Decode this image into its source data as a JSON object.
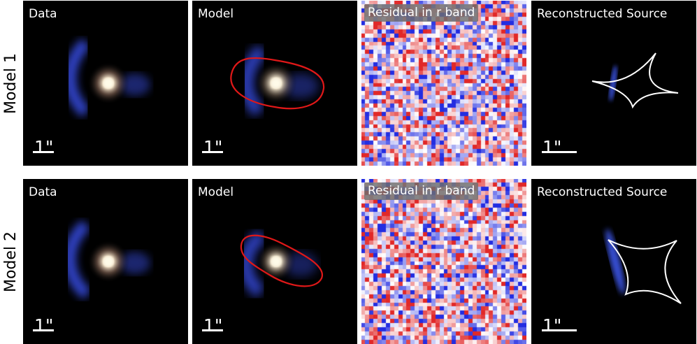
{
  "rows": [
    {
      "label": "Model 1",
      "panels": {
        "data": {
          "title": "Data",
          "scale": "1\""
        },
        "model": {
          "title": "Model",
          "scale": "1\""
        },
        "residual": {
          "title": "Residual in r band"
        },
        "source": {
          "title": "Reconstructed Source",
          "scale": "1\""
        }
      }
    },
    {
      "label": "Model 2",
      "panels": {
        "data": {
          "title": "Data",
          "scale": "1\""
        },
        "model": {
          "title": "Model",
          "scale": "1\""
        },
        "residual": {
          "title": "Residual in r band"
        },
        "source": {
          "title": "Reconstructed Source",
          "scale": "1\""
        }
      }
    }
  ],
  "colors": {
    "background": "#000000",
    "arc": "#3a52e0",
    "lens_galaxy": "#f4ead8",
    "critical_curve": "#e01818",
    "caustic": "#ffffff",
    "residual_positive": "#e03030",
    "residual_negative": "#3040e0"
  }
}
